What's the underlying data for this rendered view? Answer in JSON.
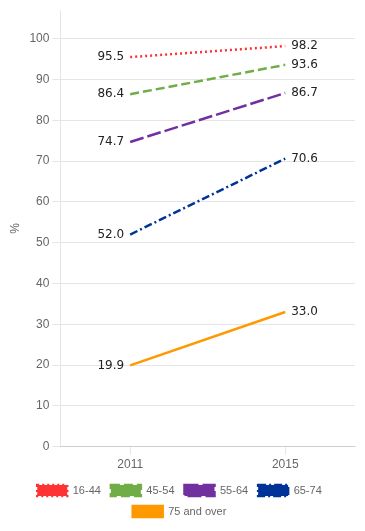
{
  "chart_data": {
    "type": "line",
    "x": [
      2011,
      2015
    ],
    "series": [
      {
        "name": "16-44",
        "color": "#FF3333",
        "line_style": "dotted",
        "values": [
          95.5,
          98.2
        ],
        "value_labels": [
          "95.5",
          "98.2"
        ]
      },
      {
        "name": "45-54",
        "color": "#70AD47",
        "line_style": "dashed",
        "values": [
          86.4,
          93.6
        ],
        "value_labels": [
          "86.4",
          "93.6"
        ]
      },
      {
        "name": "55-64",
        "color": "#7030A0",
        "line_style": "longdash",
        "values": [
          74.7,
          86.7
        ],
        "value_labels": [
          "74.7",
          "86.7"
        ]
      },
      {
        "name": "65-74",
        "color": "#003399",
        "line_style": "dashdot",
        "values": [
          52.0,
          70.6
        ],
        "value_labels": [
          "52.0",
          "70.6"
        ]
      },
      {
        "name": "75 and over",
        "color": "#FF9900",
        "line_style": "solid",
        "values": [
          19.9,
          33.0
        ],
        "value_labels": [
          "19.9",
          "33.0"
        ]
      }
    ],
    "ylabel": "%",
    "xlim": [
      2009.2,
      2016.8
    ],
    "xticks": [
      2011,
      2015
    ],
    "ylim": [
      0,
      107
    ],
    "yticks": [
      0,
      10,
      20,
      30,
      40,
      50,
      60,
      70,
      80,
      90,
      100
    ],
    "grid": true,
    "data_labels": true,
    "legend": "bottom"
  }
}
